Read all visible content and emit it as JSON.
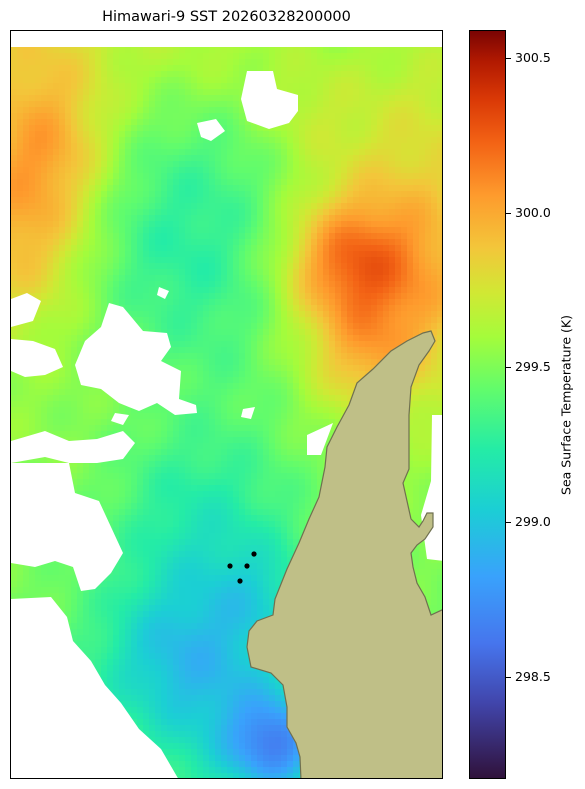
{
  "title": "Himawari-9 SST 20260328200000",
  "colorbar": {
    "label": "Sea Surface Temperature (K)",
    "min": 298.17,
    "max": 300.59,
    "ticks": [
      "300.5",
      "300.0",
      "299.5",
      "299.0",
      "298.5"
    ],
    "colormap": "turbo"
  },
  "colors": {
    "land": "#bfbf87",
    "coastline": "#6f7050",
    "station": "#000000",
    "no_data": "#ffffff"
  }
}
